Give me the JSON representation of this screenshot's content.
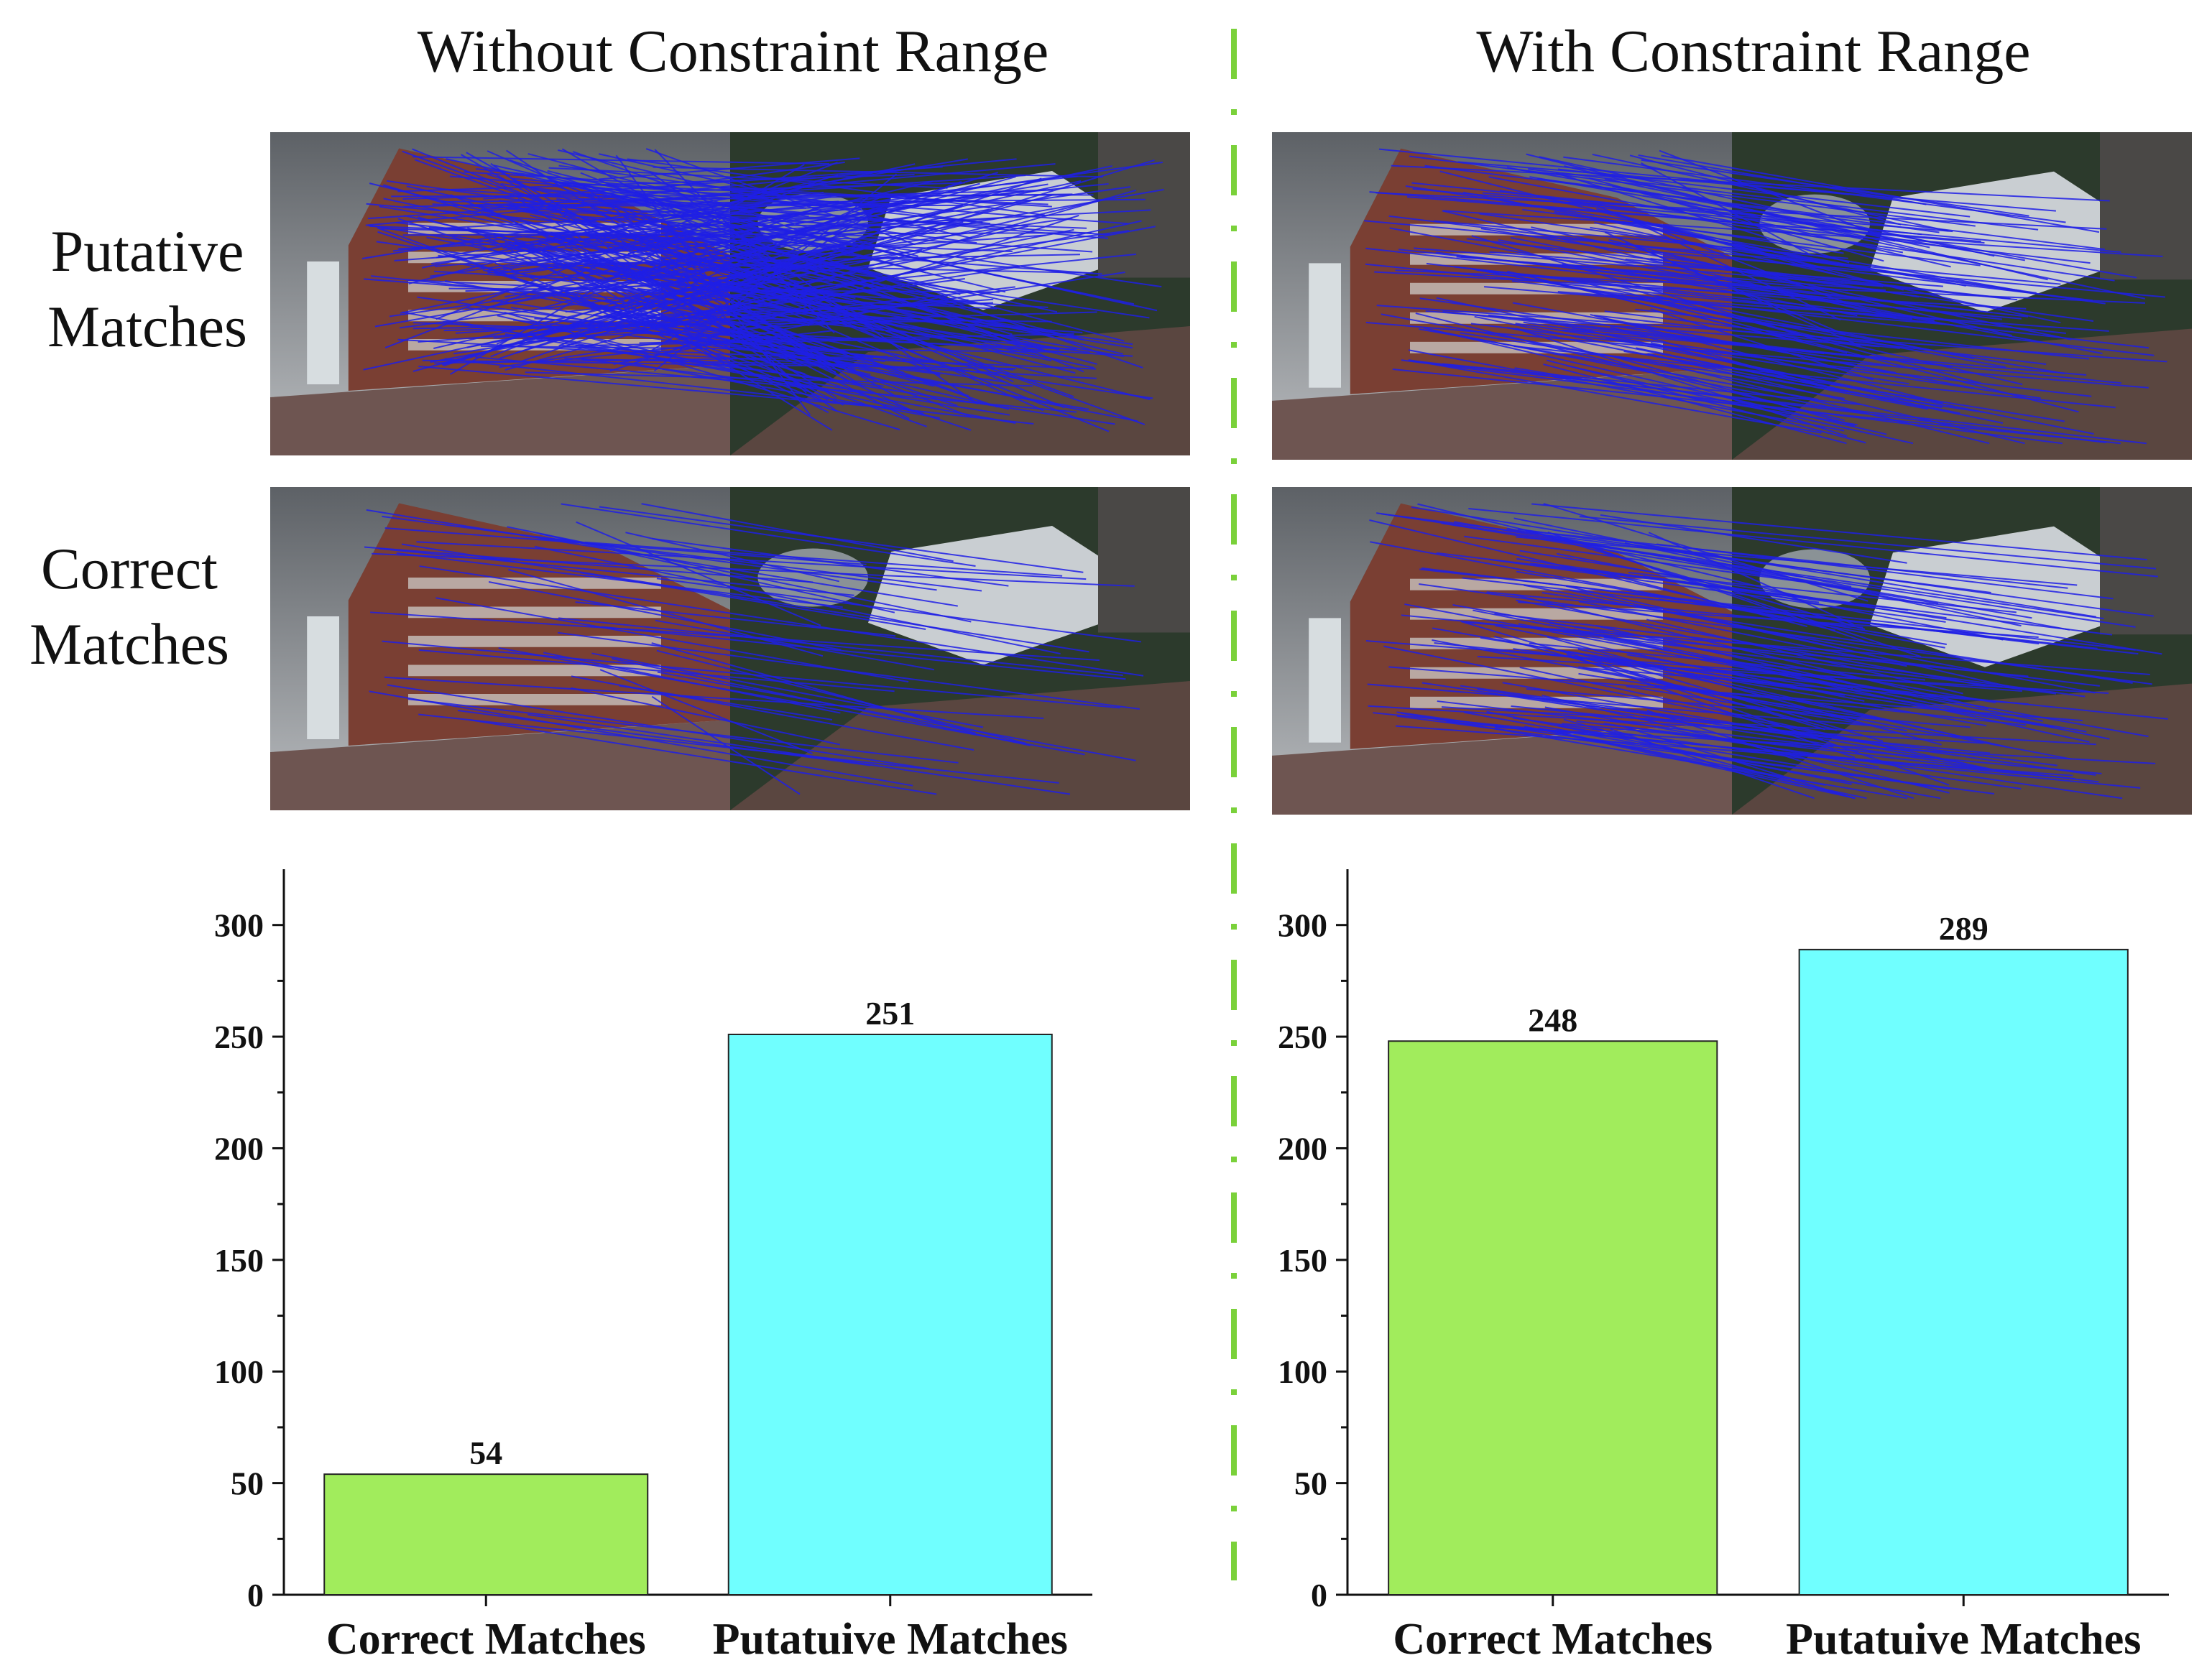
{
  "titles": {
    "left": "Without Constraint Range",
    "right": "With Constraint Range"
  },
  "row_labels": {
    "putative_line1": "Putative",
    "putative_line2": "Matches",
    "correct_line1": "Correct",
    "correct_line2": "Matches"
  },
  "colors": {
    "correct_bar": "#a1ec5c",
    "putative_bar": "#70ffff",
    "match_lines": "#1f1fe6",
    "divider": "#7ad13a"
  },
  "chart_data": [
    {
      "type": "bar",
      "categories": [
        "Correct Matches",
        "Putatuive Matches"
      ],
      "values": [
        54,
        251
      ],
      "data_labels": [
        "54",
        "251"
      ],
      "title": "",
      "xlabel": "",
      "ylabel": "",
      "ylim": [
        0,
        325
      ],
      "yticks": [
        0,
        50,
        100,
        150,
        200,
        250,
        300
      ],
      "ytick_labels": [
        "0",
        "50",
        "100",
        "150",
        "200",
        "250",
        "300"
      ],
      "grid": false,
      "legend": "none"
    },
    {
      "type": "bar",
      "categories": [
        "Correct Matches",
        "Putatuive Matches"
      ],
      "values": [
        248,
        289
      ],
      "data_labels": [
        "248",
        "289"
      ],
      "title": "",
      "xlabel": "",
      "ylabel": "",
      "ylim": [
        0,
        325
      ],
      "yticks": [
        0,
        50,
        100,
        150,
        200,
        250,
        300
      ],
      "ytick_labels": [
        "0",
        "50",
        "100",
        "150",
        "200",
        "250",
        "300"
      ],
      "grid": false,
      "legend": "none"
    }
  ]
}
